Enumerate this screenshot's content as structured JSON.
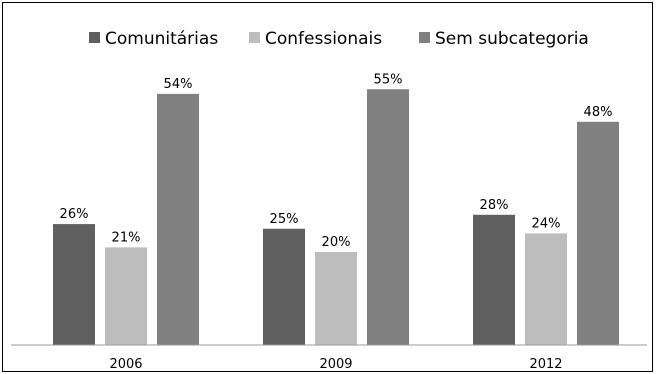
{
  "chart_data": {
    "type": "bar",
    "categories": [
      "2006",
      "2009",
      "2012"
    ],
    "series": [
      {
        "name": "Comunitárias",
        "values": [
          26,
          25,
          28
        ],
        "labels": [
          "26%",
          "25%",
          "28%"
        ],
        "color": "#5f5f5f"
      },
      {
        "name": "Confessionais",
        "values": [
          21,
          20,
          24
        ],
        "labels": [
          "21%",
          "20%",
          "24%"
        ],
        "color": "#bdbdbd"
      },
      {
        "name": "Sem subcategoria",
        "values": [
          54,
          55,
          48
        ],
        "labels": [
          "54%",
          "55%",
          "48%"
        ],
        "color": "#808080"
      }
    ],
    "title": "",
    "xlabel": "",
    "ylabel": "",
    "ylim": [
      0,
      60
    ],
    "grid": false,
    "legend_position": "top"
  }
}
